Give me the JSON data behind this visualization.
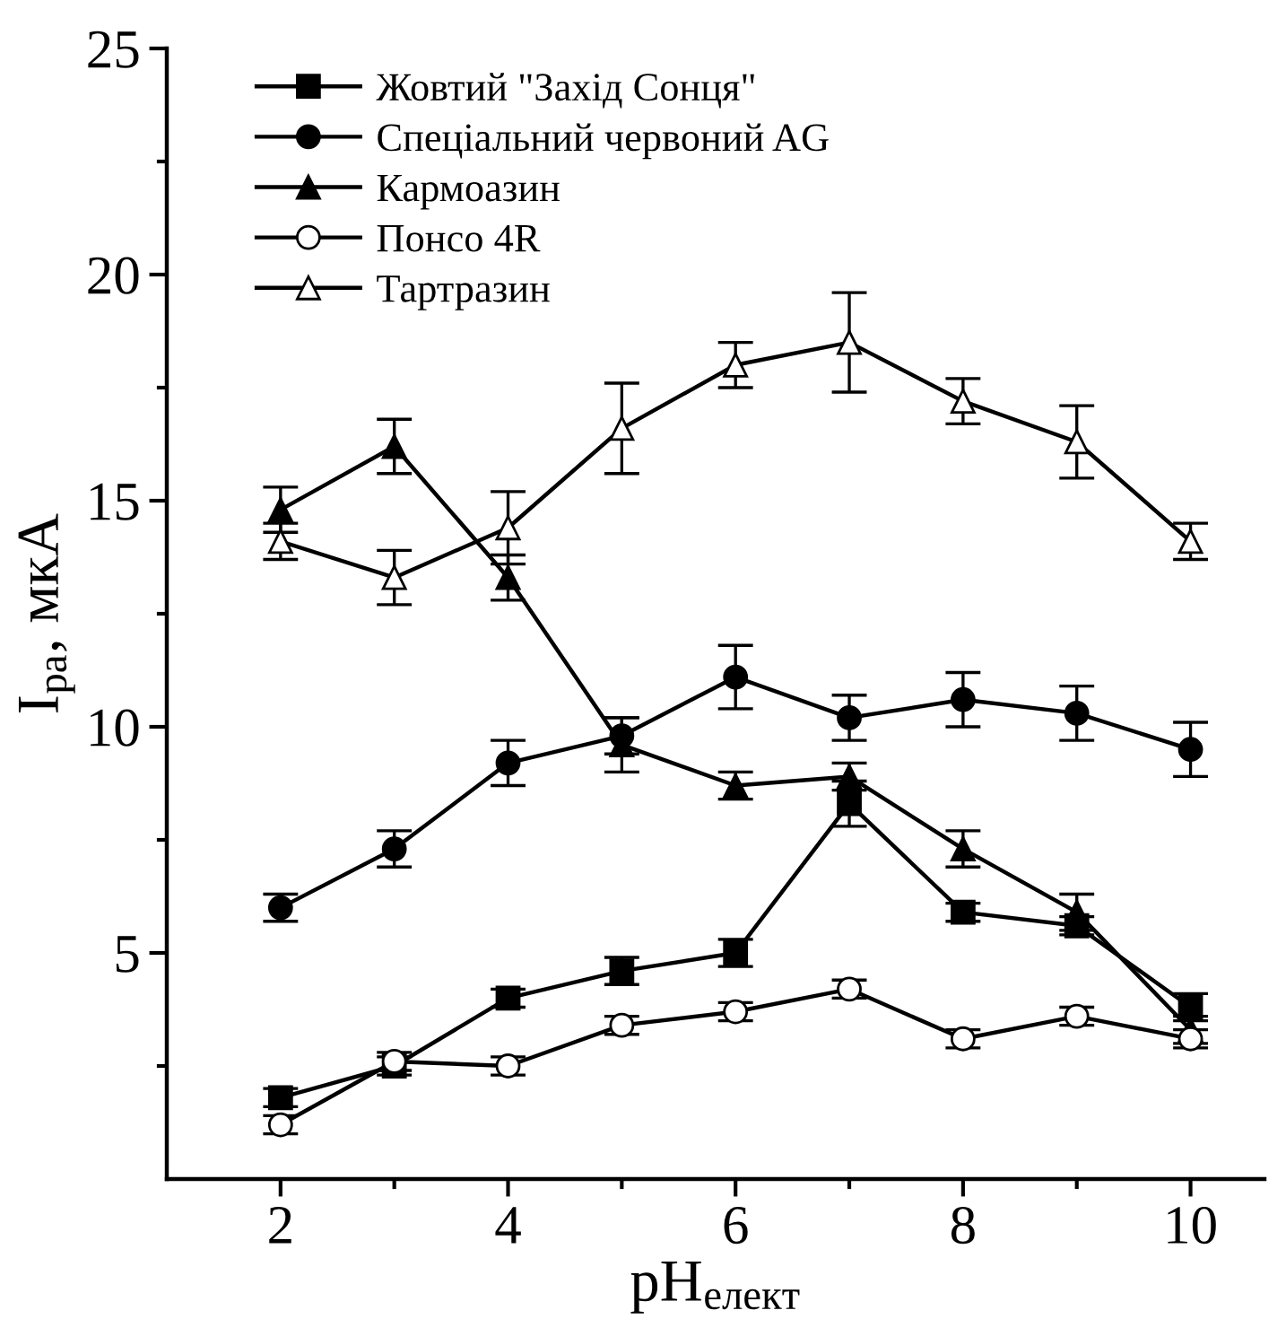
{
  "chart_data": {
    "type": "line",
    "xlabel": "pH$_{елект}$",
    "ylabel": "I$_{pa}$, мкА",
    "x": [
      2,
      3,
      4,
      5,
      6,
      7,
      8,
      9,
      10
    ],
    "xlim": [
      1,
      10.65
    ],
    "ylim": [
      0,
      25
    ],
    "xticks": [
      2,
      {
        "value": 3,
        "label": null
      },
      4,
      {
        "value": 5,
        "label": null
      },
      6,
      {
        "value": 7,
        "label": null
      },
      8,
      {
        "value": 9,
        "label": null
      },
      10
    ],
    "yticks": [
      {
        "value": 2.5,
        "label": null
      },
      5,
      {
        "value": 7.5,
        "label": null
      },
      10,
      {
        "value": 12.5,
        "label": null
      },
      15,
      {
        "value": 17.5,
        "label": null
      },
      20,
      {
        "value": 22.5,
        "label": null
      },
      25
    ],
    "grid": false,
    "legend": "top left",
    "line_style": "solid",
    "series": [
      {
        "name": "Жовтий \"Захід Сонця\"",
        "color": "#000000",
        "marker": "square",
        "values": [
          1.8,
          2.5,
          4.0,
          4.6,
          5.0,
          8.3,
          5.9,
          5.6,
          3.8
        ],
        "errors": [
          0.2,
          0.2,
          0.2,
          0.3,
          0.3,
          0.5,
          0.2,
          0.2,
          0.3
        ]
      },
      {
        "name": "Спеціальний червоний AG",
        "color": "#000000",
        "marker": "circle",
        "values": [
          6.0,
          7.3,
          9.2,
          9.8,
          11.1,
          10.2,
          10.6,
          10.3,
          9.5
        ],
        "errors": [
          0.3,
          0.4,
          0.5,
          0.4,
          0.7,
          0.5,
          0.6,
          0.6,
          0.6
        ]
      },
      {
        "name": "Кармоазин",
        "color": "#000000",
        "marker": "triangle",
        "values": [
          14.8,
          16.2,
          13.3,
          9.6,
          8.7,
          8.9,
          7.3,
          5.9,
          3.3
        ],
        "errors": [
          0.5,
          0.6,
          0.5,
          0.6,
          0.3,
          0.3,
          0.4,
          0.4,
          0.3
        ]
      },
      {
        "name": "Понсо 4R",
        "color": "#ffffff",
        "marker": "circle",
        "values": [
          1.2,
          2.6,
          2.5,
          3.4,
          3.7,
          4.2,
          3.1,
          3.6,
          3.1
        ],
        "errors": [
          0.2,
          0.2,
          0.2,
          0.2,
          0.2,
          0.2,
          0.2,
          0.2,
          0.2
        ]
      },
      {
        "name": "Тартразин",
        "color": "#ffffff",
        "marker": "triangle",
        "values": [
          14.1,
          13.3,
          14.4,
          16.6,
          18.0,
          18.5,
          17.2,
          16.3,
          14.1
        ],
        "errors": [
          0.4,
          0.6,
          0.8,
          1.0,
          0.5,
          1.1,
          0.5,
          0.8,
          0.4
        ]
      }
    ]
  }
}
